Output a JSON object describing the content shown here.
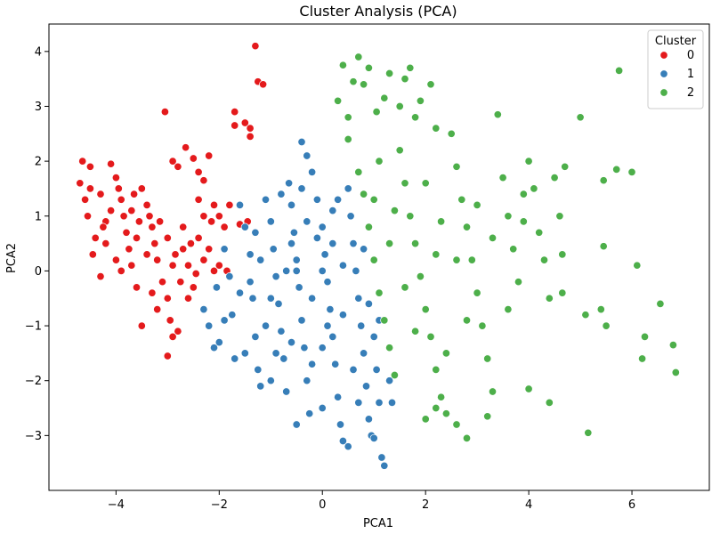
{
  "chart_data": {
    "type": "scatter",
    "title": "Cluster Analysis (PCA)",
    "xlabel": "PCA1",
    "ylabel": "PCA2",
    "xlim": [
      -5.3,
      7.5
    ],
    "ylim": [
      -4.0,
      4.5
    ],
    "xticks": [
      -4,
      -2,
      0,
      2,
      4,
      6
    ],
    "yticks": [
      -3,
      -2,
      -1,
      0,
      1,
      2,
      3,
      4
    ],
    "xtick_labels": [
      "−4",
      "−2",
      "0",
      "2",
      "4",
      "6"
    ],
    "ytick_labels": [
      "−3",
      "−2",
      "−1",
      "0",
      "1",
      "2",
      "3",
      "4"
    ],
    "grid": false,
    "legend": {
      "title": "Cluster",
      "placement": "top-right",
      "entries": [
        {
          "label": "0",
          "color": "#e41a1c"
        },
        {
          "label": "1",
          "color": "#377eb8"
        },
        {
          "label": "2",
          "color": "#4daf4a"
        }
      ]
    },
    "series": [
      {
        "name": "0",
        "color": "#e41a1c",
        "points": [
          [
            -4.7,
            1.6
          ],
          [
            -4.65,
            2.0
          ],
          [
            -4.5,
            1.9
          ],
          [
            -4.6,
            1.3
          ],
          [
            -4.55,
            1.0
          ],
          [
            -4.4,
            0.6
          ],
          [
            -4.45,
            0.3
          ],
          [
            -4.3,
            -0.1
          ],
          [
            -4.2,
            0.9
          ],
          [
            -4.1,
            1.95
          ],
          [
            -4.0,
            1.7
          ],
          [
            -3.9,
            1.3
          ],
          [
            -3.85,
            1.0
          ],
          [
            -3.8,
            0.7
          ],
          [
            -3.75,
            0.4
          ],
          [
            -3.7,
            0.1
          ],
          [
            -3.6,
            -0.3
          ],
          [
            -3.5,
            1.5
          ],
          [
            -3.4,
            1.2
          ],
          [
            -3.3,
            0.8
          ],
          [
            -3.25,
            0.5
          ],
          [
            -3.2,
            0.2
          ],
          [
            -3.1,
            -0.2
          ],
          [
            -3.0,
            -0.5
          ],
          [
            -2.95,
            -0.9
          ],
          [
            -2.9,
            -1.2
          ],
          [
            -2.8,
            -1.1
          ],
          [
            -2.7,
            0.4
          ],
          [
            -2.6,
            0.1
          ],
          [
            -2.5,
            -0.3
          ],
          [
            -2.4,
            0.6
          ],
          [
            -2.3,
            0.2
          ],
          [
            -2.2,
            0.4
          ],
          [
            -2.1,
            0.0
          ],
          [
            -3.5,
            -1.0
          ],
          [
            -3.0,
            -1.55
          ],
          [
            -3.05,
            2.9
          ],
          [
            -2.9,
            2.0
          ],
          [
            -2.8,
            1.9
          ],
          [
            -2.65,
            2.25
          ],
          [
            -2.5,
            2.05
          ],
          [
            -2.4,
            1.8
          ],
          [
            -2.3,
            1.65
          ],
          [
            -2.2,
            2.1
          ],
          [
            -2.1,
            1.2
          ],
          [
            -2.0,
            1.0
          ],
          [
            -1.9,
            0.8
          ],
          [
            -1.8,
            1.2
          ],
          [
            -2.15,
            0.9
          ],
          [
            -2.4,
            1.3
          ],
          [
            -1.7,
            2.65
          ],
          [
            -1.7,
            2.9
          ],
          [
            -1.5,
            2.7
          ],
          [
            -1.4,
            2.6
          ],
          [
            -1.4,
            2.45
          ],
          [
            -1.3,
            4.1
          ],
          [
            -1.25,
            3.45
          ],
          [
            -1.15,
            3.4
          ],
          [
            -2.0,
            0.1
          ],
          [
            -1.85,
            0.0
          ],
          [
            -4.2,
            0.5
          ],
          [
            -4.0,
            0.2
          ],
          [
            -3.9,
            0.0
          ],
          [
            -4.3,
            1.4
          ],
          [
            -4.5,
            1.5
          ],
          [
            -3.7,
            1.1
          ],
          [
            -3.6,
            0.6
          ],
          [
            -3.4,
            0.3
          ],
          [
            -3.3,
            -0.4
          ],
          [
            -3.15,
            0.9
          ],
          [
            -3.0,
            0.6
          ],
          [
            -2.85,
            0.3
          ],
          [
            -2.75,
            -0.2
          ],
          [
            -2.6,
            -0.5
          ],
          [
            -4.1,
            1.1
          ],
          [
            -4.25,
            0.8
          ],
          [
            -3.95,
            1.5
          ],
          [
            -3.65,
            1.4
          ],
          [
            -3.55,
            0.9
          ],
          [
            -3.35,
            1.0
          ],
          [
            -2.9,
            0.1
          ],
          [
            -2.7,
            0.8
          ],
          [
            -2.55,
            0.5
          ],
          [
            -3.2,
            -0.7
          ],
          [
            -2.45,
            -0.05
          ],
          [
            -1.45,
            0.9
          ],
          [
            -1.6,
            0.85
          ],
          [
            -2.3,
            1.0
          ]
        ]
      },
      {
        "name": "1",
        "color": "#377eb8",
        "points": [
          [
            -2.3,
            -0.7
          ],
          [
            -2.2,
            -1.0
          ],
          [
            -2.1,
            -1.4
          ],
          [
            -2.0,
            -1.3
          ],
          [
            -2.05,
            -0.3
          ],
          [
            -1.9,
            0.4
          ],
          [
            -1.8,
            -0.1
          ],
          [
            -1.75,
            -0.8
          ],
          [
            -1.7,
            -1.6
          ],
          [
            -1.6,
            1.2
          ],
          [
            -1.5,
            0.8
          ],
          [
            -1.4,
            0.3
          ],
          [
            -1.35,
            -0.5
          ],
          [
            -1.3,
            -1.2
          ],
          [
            -1.25,
            -1.8
          ],
          [
            -1.2,
            -2.1
          ],
          [
            -1.1,
            1.3
          ],
          [
            -1.0,
            0.9
          ],
          [
            -0.95,
            0.4
          ],
          [
            -0.9,
            -0.1
          ],
          [
            -0.85,
            -0.6
          ],
          [
            -0.8,
            -1.1
          ],
          [
            -0.75,
            -1.6
          ],
          [
            -0.7,
            -2.2
          ],
          [
            -0.65,
            1.6
          ],
          [
            -0.6,
            1.2
          ],
          [
            -0.55,
            0.7
          ],
          [
            -0.5,
            0.2
          ],
          [
            -0.45,
            -0.3
          ],
          [
            -0.4,
            -0.9
          ],
          [
            -0.35,
            -1.4
          ],
          [
            -0.3,
            -2.0
          ],
          [
            -0.25,
            -2.6
          ],
          [
            -0.4,
            2.35
          ],
          [
            -0.3,
            2.1
          ],
          [
            -0.2,
            1.8
          ],
          [
            -0.1,
            1.3
          ],
          [
            0.0,
            0.8
          ],
          [
            0.05,
            0.3
          ],
          [
            0.1,
            -0.2
          ],
          [
            0.15,
            -0.7
          ],
          [
            0.2,
            -1.2
          ],
          [
            0.25,
            -1.7
          ],
          [
            0.3,
            -2.3
          ],
          [
            0.35,
            -2.8
          ],
          [
            0.4,
            -3.1
          ],
          [
            0.5,
            1.5
          ],
          [
            0.55,
            1.0
          ],
          [
            0.6,
            0.5
          ],
          [
            0.65,
            0.0
          ],
          [
            0.7,
            -0.5
          ],
          [
            0.75,
            -1.0
          ],
          [
            0.8,
            -1.5
          ],
          [
            0.85,
            -2.1
          ],
          [
            0.9,
            -2.7
          ],
          [
            0.95,
            -3.0
          ],
          [
            1.0,
            -1.2
          ],
          [
            1.05,
            -1.8
          ],
          [
            1.1,
            -2.4
          ],
          [
            1.15,
            -3.4
          ],
          [
            1.2,
            -3.55
          ],
          [
            1.3,
            -2.0
          ],
          [
            1.35,
            -2.4
          ],
          [
            -1.0,
            -2.0
          ],
          [
            -0.5,
            -2.8
          ],
          [
            0.0,
            -2.5
          ],
          [
            0.5,
            -3.2
          ],
          [
            1.0,
            -3.05
          ],
          [
            -1.5,
            -1.5
          ],
          [
            -1.0,
            -0.5
          ],
          [
            -0.5,
            0.0
          ],
          [
            0.0,
            0.0
          ],
          [
            0.2,
            0.5
          ],
          [
            -0.2,
            -0.5
          ],
          [
            0.4,
            -0.8
          ],
          [
            -0.7,
            0.0
          ],
          [
            -1.2,
            0.2
          ],
          [
            -1.6,
            -0.4
          ],
          [
            0.8,
            0.4
          ],
          [
            0.3,
            1.3
          ],
          [
            -0.1,
            0.6
          ],
          [
            -0.6,
            -1.3
          ],
          [
            0.6,
            -1.8
          ],
          [
            0.1,
            -1.0
          ],
          [
            -0.3,
            0.9
          ],
          [
            -0.8,
            1.4
          ],
          [
            -1.3,
            0.7
          ],
          [
            -1.9,
            -0.9
          ],
          [
            0.9,
            -0.6
          ],
          [
            0.4,
            0.1
          ],
          [
            -0.9,
            -1.5
          ],
          [
            -0.2,
            -1.7
          ],
          [
            0.7,
            -2.4
          ],
          [
            -1.4,
            -0.2
          ],
          [
            -0.4,
            1.5
          ],
          [
            0.2,
            1.1
          ],
          [
            -0.6,
            0.5
          ],
          [
            1.1,
            -0.9
          ],
          [
            0.0,
            -1.4
          ],
          [
            -1.1,
            -1.0
          ]
        ]
      },
      {
        "name": "2",
        "color": "#4daf4a",
        "points": [
          [
            0.4,
            3.75
          ],
          [
            0.3,
            3.1
          ],
          [
            0.5,
            2.8
          ],
          [
            0.6,
            3.45
          ],
          [
            0.7,
            3.9
          ],
          [
            0.8,
            3.4
          ],
          [
            0.9,
            3.7
          ],
          [
            1.05,
            2.9
          ],
          [
            1.2,
            3.15
          ],
          [
            1.3,
            3.6
          ],
          [
            1.5,
            3.0
          ],
          [
            1.6,
            3.5
          ],
          [
            1.7,
            3.7
          ],
          [
            1.8,
            2.8
          ],
          [
            1.9,
            3.1
          ],
          [
            2.1,
            3.4
          ],
          [
            2.2,
            2.6
          ],
          [
            0.5,
            2.4
          ],
          [
            0.7,
            1.8
          ],
          [
            0.8,
            1.4
          ],
          [
            0.9,
            0.8
          ],
          [
            1.0,
            0.2
          ],
          [
            1.1,
            -0.4
          ],
          [
            1.2,
            -0.9
          ],
          [
            1.3,
            -1.4
          ],
          [
            1.4,
            -1.9
          ],
          [
            1.5,
            2.2
          ],
          [
            1.6,
            1.6
          ],
          [
            1.7,
            1.0
          ],
          [
            1.8,
            0.5
          ],
          [
            1.9,
            -0.1
          ],
          [
            2.0,
            -0.7
          ],
          [
            2.1,
            -1.2
          ],
          [
            2.2,
            -1.8
          ],
          [
            2.3,
            -2.3
          ],
          [
            2.4,
            -2.6
          ],
          [
            2.5,
            2.5
          ],
          [
            2.6,
            1.9
          ],
          [
            2.7,
            1.3
          ],
          [
            2.8,
            0.8
          ],
          [
            2.9,
            0.2
          ],
          [
            3.0,
            -0.4
          ],
          [
            3.1,
            -1.0
          ],
          [
            3.2,
            -1.6
          ],
          [
            3.3,
            -2.2
          ],
          [
            3.4,
            2.85
          ],
          [
            3.5,
            1.7
          ],
          [
            3.6,
            1.0
          ],
          [
            3.7,
            0.4
          ],
          [
            3.8,
            -0.2
          ],
          [
            3.9,
            0.9
          ],
          [
            4.0,
            2.0
          ],
          [
            4.1,
            1.5
          ],
          [
            4.2,
            0.7
          ],
          [
            4.3,
            0.2
          ],
          [
            4.4,
            -0.5
          ],
          [
            4.5,
            1.7
          ],
          [
            4.6,
            1.0
          ],
          [
            4.65,
            0.3
          ],
          [
            4.0,
            -2.15
          ],
          [
            4.4,
            -2.4
          ],
          [
            3.2,
            -2.65
          ],
          [
            2.8,
            -3.05
          ],
          [
            2.6,
            -2.8
          ],
          [
            2.2,
            -2.5
          ],
          [
            2.0,
            -2.7
          ],
          [
            5.0,
            2.8
          ],
          [
            5.1,
            -0.8
          ],
          [
            5.15,
            -2.95
          ],
          [
            5.4,
            -0.7
          ],
          [
            5.45,
            1.65
          ],
          [
            5.5,
            -1.0
          ],
          [
            5.7,
            1.85
          ],
          [
            5.75,
            3.65
          ],
          [
            6.0,
            1.8
          ],
          [
            6.1,
            0.1
          ],
          [
            6.25,
            -1.2
          ],
          [
            6.2,
            -1.6
          ],
          [
            6.55,
            -0.6
          ],
          [
            6.8,
            -1.35
          ],
          [
            6.85,
            -1.85
          ],
          [
            5.45,
            0.45
          ],
          [
            4.7,
            1.9
          ],
          [
            4.65,
            -0.4
          ],
          [
            1.0,
            1.3
          ],
          [
            1.3,
            0.5
          ],
          [
            1.6,
            -0.3
          ],
          [
            2.3,
            0.9
          ],
          [
            2.6,
            0.2
          ],
          [
            3.0,
            1.2
          ],
          [
            3.3,
            0.6
          ],
          [
            2.0,
            1.6
          ],
          [
            1.4,
            1.1
          ],
          [
            2.8,
            -0.9
          ],
          [
            2.4,
            -1.5
          ],
          [
            3.6,
            -0.7
          ],
          [
            1.8,
            -1.1
          ],
          [
            2.2,
            0.3
          ],
          [
            3.9,
            1.4
          ],
          [
            1.1,
            2.0
          ]
        ]
      }
    ]
  }
}
